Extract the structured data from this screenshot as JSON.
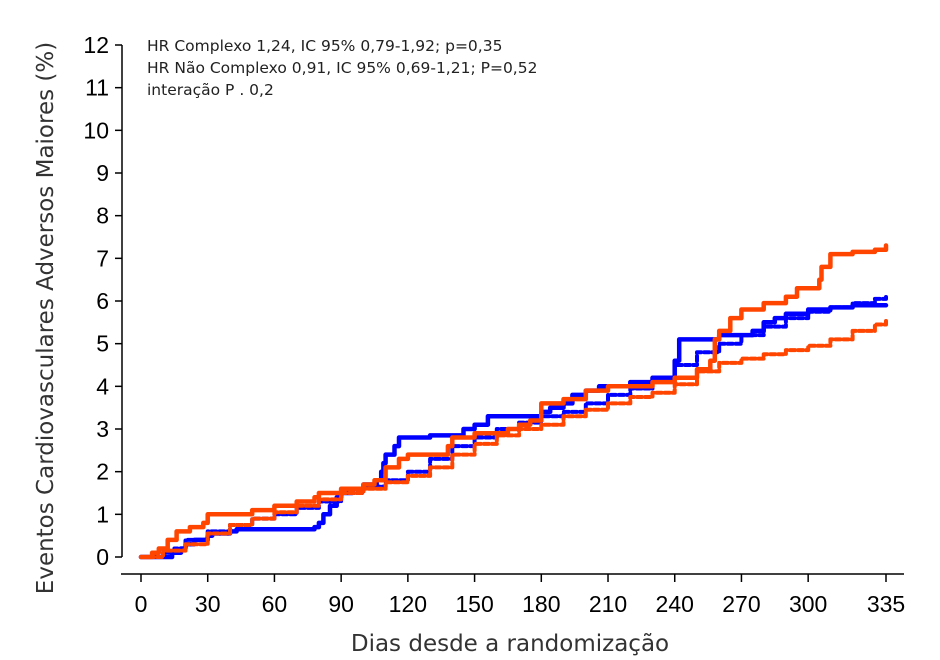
{
  "chart_data": {
    "type": "line",
    "title": "",
    "xlabel": "Dias desde a randomização",
    "ylabel": "Eventos Cardiovasculares Adversos Maiores (%)",
    "xlim": [
      0,
      335
    ],
    "ylim": [
      0,
      12
    ],
    "xticks": [
      0,
      30,
      60,
      90,
      120,
      150,
      180,
      210,
      240,
      270,
      300,
      335
    ],
    "yticks": [
      0,
      1,
      2,
      3,
      4,
      5,
      6,
      7,
      8,
      9,
      10,
      11,
      12
    ],
    "grid": false,
    "annotations": [
      "HR Complexo 1,24, IC 95% 0,79-1,92; p=0,35",
      "HR Não Complexo 0,91, IC 95% 0,69-1,21; P=0,52",
      "interação P . 0,2"
    ],
    "series": [
      {
        "color": "#0000ff",
        "style": "solid",
        "x": [
          0,
          12,
          14,
          18,
          20,
          24,
          30,
          32,
          40,
          43,
          52,
          58,
          62,
          70,
          78,
          80,
          82,
          85,
          88,
          90,
          95,
          100,
          106,
          108,
          109,
          110,
          114,
          116,
          124,
          130,
          140,
          145,
          150,
          156,
          160,
          165,
          170,
          180,
          184,
          190,
          194,
          200,
          206,
          210,
          220,
          230,
          240,
          242,
          250,
          255,
          260,
          265,
          270,
          275,
          280,
          285,
          290,
          300,
          310,
          320,
          330,
          335
        ],
        "y": [
          0,
          0,
          0.1,
          0.2,
          0.3,
          0.4,
          0.5,
          0.55,
          0.6,
          0.65,
          0.65,
          0.65,
          0.65,
          0.65,
          0.7,
          0.8,
          1.0,
          1.2,
          1.4,
          1.5,
          1.6,
          1.7,
          1.8,
          2.0,
          2.2,
          2.4,
          2.6,
          2.8,
          2.8,
          2.85,
          2.85,
          3.0,
          3.1,
          3.3,
          3.3,
          3.3,
          3.3,
          3.4,
          3.5,
          3.6,
          3.8,
          3.9,
          4.0,
          4.0,
          4.1,
          4.2,
          4.6,
          5.1,
          5.1,
          5.1,
          5.2,
          5.2,
          5.2,
          5.3,
          5.5,
          5.6,
          5.7,
          5.8,
          5.85,
          5.9,
          5.9,
          5.9
        ]
      },
      {
        "color": "#0000ff",
        "style": "dashed",
        "x": [
          0,
          10,
          15,
          20,
          30,
          40,
          50,
          60,
          70,
          80,
          90,
          100,
          110,
          120,
          130,
          140,
          150,
          160,
          170,
          180,
          190,
          200,
          210,
          220,
          230,
          240,
          250,
          260,
          270,
          280,
          290,
          300,
          310,
          320,
          330,
          335
        ],
        "y": [
          0,
          0.1,
          0.2,
          0.4,
          0.6,
          0.75,
          0.9,
          1.0,
          1.15,
          1.3,
          1.5,
          1.65,
          1.8,
          2.0,
          2.3,
          2.6,
          2.8,
          3.0,
          3.15,
          3.3,
          3.4,
          3.6,
          3.8,
          3.95,
          4.2,
          4.5,
          4.8,
          5.0,
          5.2,
          5.4,
          5.6,
          5.75,
          5.85,
          5.95,
          6.05,
          6.1
        ]
      },
      {
        "color": "#ff4500",
        "style": "solid",
        "x": [
          0,
          5,
          8,
          12,
          16,
          22,
          28,
          30,
          38,
          45,
          50,
          60,
          70,
          78,
          80,
          90,
          100,
          105,
          110,
          116,
          120,
          130,
          138,
          140,
          150,
          160,
          165,
          170,
          175,
          180,
          190,
          200,
          210,
          220,
          230,
          240,
          250,
          256,
          258,
          260,
          265,
          270,
          275,
          280,
          290,
          295,
          300,
          305,
          306,
          310,
          320,
          330,
          335
        ],
        "y": [
          0,
          0.1,
          0.2,
          0.4,
          0.6,
          0.7,
          0.8,
          1.0,
          1.0,
          1.0,
          1.1,
          1.2,
          1.3,
          1.4,
          1.5,
          1.6,
          1.7,
          1.8,
          2.1,
          2.3,
          2.4,
          2.4,
          2.6,
          2.8,
          2.9,
          2.9,
          3.0,
          3.1,
          3.2,
          3.6,
          3.7,
          3.9,
          4.0,
          4.0,
          4.1,
          4.2,
          4.4,
          4.6,
          5.1,
          5.3,
          5.6,
          5.8,
          5.8,
          5.95,
          6.1,
          6.3,
          6.3,
          6.5,
          6.8,
          7.1,
          7.15,
          7.2,
          7.3
        ]
      },
      {
        "color": "#ff4500",
        "style": "dashed",
        "x": [
          0,
          10,
          20,
          30,
          40,
          50,
          60,
          70,
          80,
          90,
          100,
          110,
          120,
          130,
          140,
          150,
          160,
          170,
          180,
          190,
          200,
          210,
          220,
          230,
          240,
          250,
          260,
          270,
          280,
          290,
          300,
          310,
          320,
          330,
          335
        ],
        "y": [
          0,
          0.15,
          0.3,
          0.55,
          0.75,
          0.9,
          1.05,
          1.2,
          1.35,
          1.5,
          1.6,
          1.75,
          1.9,
          2.1,
          2.4,
          2.65,
          2.85,
          3.0,
          3.1,
          3.3,
          3.45,
          3.6,
          3.75,
          3.85,
          4.05,
          4.35,
          4.55,
          4.65,
          4.75,
          4.85,
          4.95,
          5.1,
          5.3,
          5.45,
          5.55
        ]
      }
    ]
  }
}
